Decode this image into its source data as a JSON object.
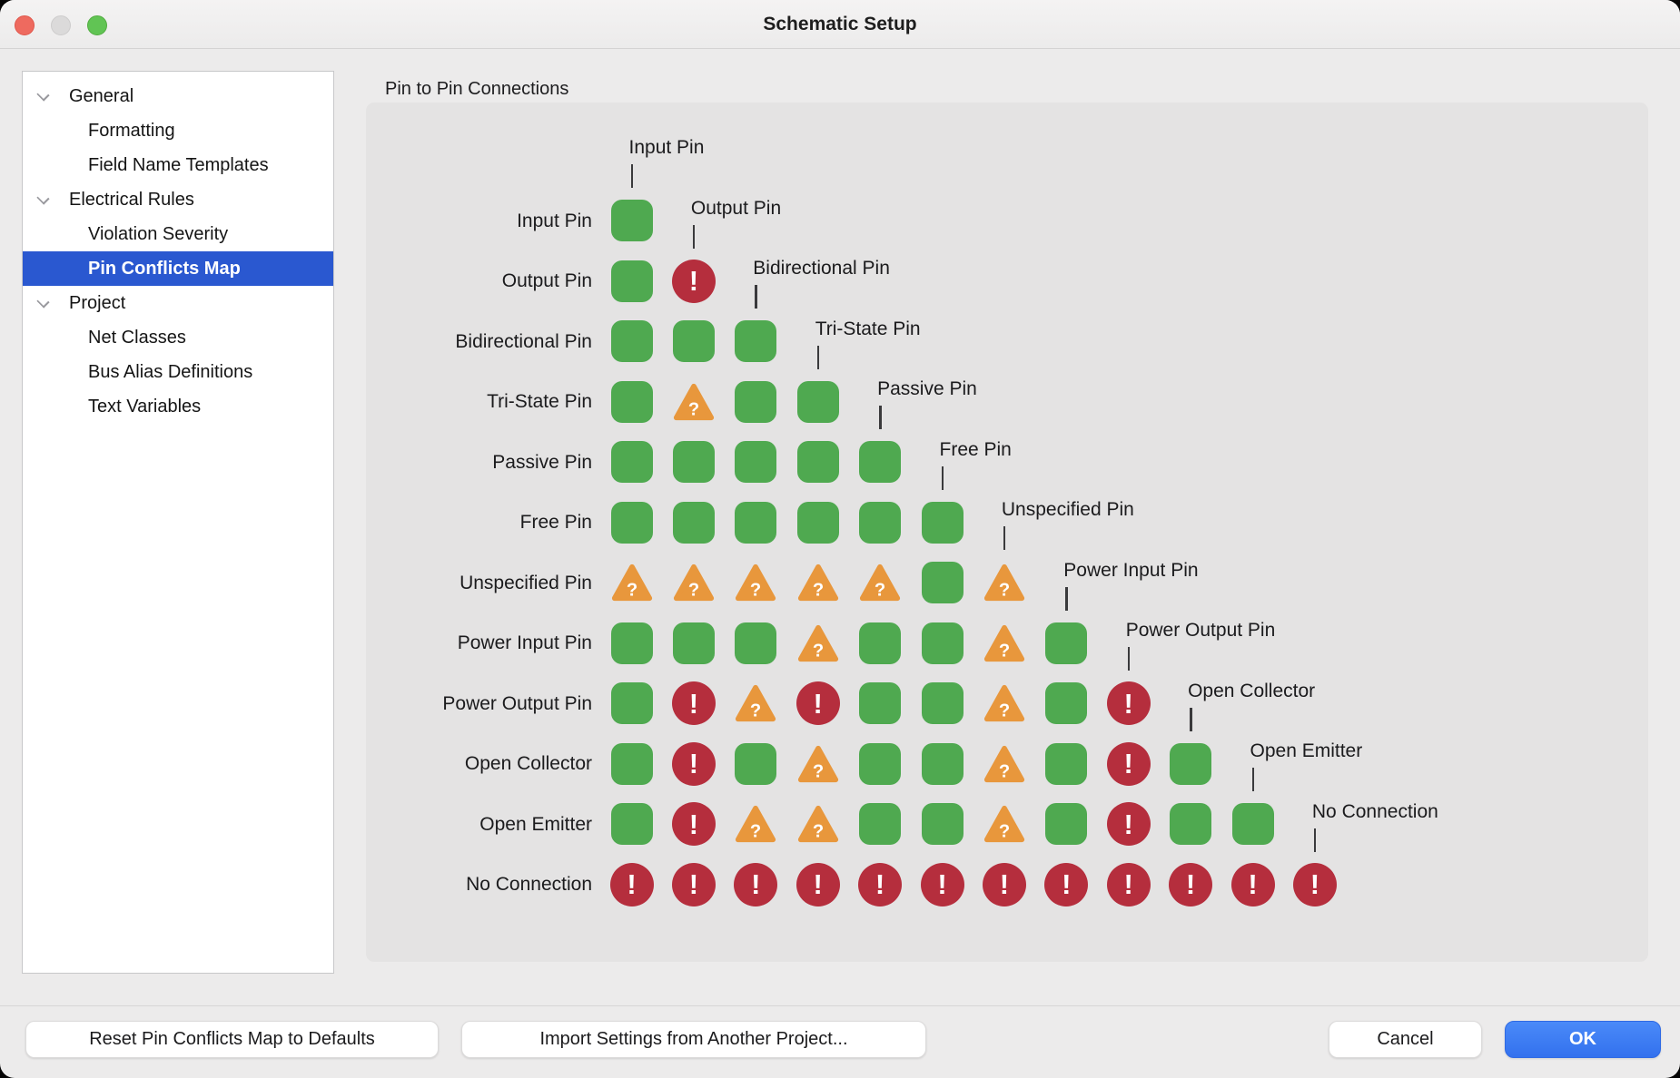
{
  "window": {
    "title": "Schematic Setup"
  },
  "sidebar": {
    "items": [
      {
        "label": "General",
        "type": "group",
        "selected": false
      },
      {
        "label": "Formatting",
        "type": "child",
        "selected": false
      },
      {
        "label": "Field Name Templates",
        "type": "child",
        "selected": false
      },
      {
        "label": "Electrical Rules",
        "type": "group",
        "selected": false
      },
      {
        "label": "Violation Severity",
        "type": "child",
        "selected": false
      },
      {
        "label": "Pin Conflicts Map",
        "type": "child",
        "selected": true
      },
      {
        "label": "Project",
        "type": "group",
        "selected": false
      },
      {
        "label": "Net Classes",
        "type": "child",
        "selected": false
      },
      {
        "label": "Bus Alias Definitions",
        "type": "child",
        "selected": false
      },
      {
        "label": "Text Variables",
        "type": "child",
        "selected": false
      }
    ]
  },
  "panel": {
    "label": "Pin to Pin Connections"
  },
  "pin_matrix": {
    "column_headers": [
      "Input Pin",
      "Output Pin",
      "Bidirectional Pin",
      "Tri-State Pin",
      "Passive Pin",
      "Free Pin",
      "Unspecified Pin",
      "Power Input Pin",
      "Power Output Pin",
      "Open Collector",
      "Open Emitter",
      "No Connection"
    ],
    "rows": [
      {
        "label": "Input Pin",
        "cells": [
          "ok"
        ]
      },
      {
        "label": "Output Pin",
        "cells": [
          "ok",
          "error"
        ]
      },
      {
        "label": "Bidirectional Pin",
        "cells": [
          "ok",
          "ok",
          "ok"
        ]
      },
      {
        "label": "Tri-State Pin",
        "cells": [
          "ok",
          "warning",
          "ok",
          "ok"
        ]
      },
      {
        "label": "Passive Pin",
        "cells": [
          "ok",
          "ok",
          "ok",
          "ok",
          "ok"
        ]
      },
      {
        "label": "Free Pin",
        "cells": [
          "ok",
          "ok",
          "ok",
          "ok",
          "ok",
          "ok"
        ]
      },
      {
        "label": "Unspecified Pin",
        "cells": [
          "warning",
          "warning",
          "warning",
          "warning",
          "warning",
          "ok",
          "warning"
        ]
      },
      {
        "label": "Power Input Pin",
        "cells": [
          "ok",
          "ok",
          "ok",
          "warning",
          "ok",
          "ok",
          "warning",
          "ok"
        ]
      },
      {
        "label": "Power Output Pin",
        "cells": [
          "ok",
          "error",
          "warning",
          "error",
          "ok",
          "ok",
          "warning",
          "ok",
          "error"
        ]
      },
      {
        "label": "Open Collector",
        "cells": [
          "ok",
          "error",
          "ok",
          "warning",
          "ok",
          "ok",
          "warning",
          "ok",
          "error",
          "ok"
        ]
      },
      {
        "label": "Open Emitter",
        "cells": [
          "ok",
          "error",
          "warning",
          "warning",
          "ok",
          "ok",
          "warning",
          "ok",
          "error",
          "ok",
          "ok"
        ]
      },
      {
        "label": "No Connection",
        "cells": [
          "error",
          "error",
          "error",
          "error",
          "error",
          "error",
          "error",
          "error",
          "error",
          "error",
          "error",
          "error"
        ]
      }
    ],
    "icons": {
      "ok": {
        "name": "ok-icon",
        "glyph": ""
      },
      "warning": {
        "name": "warning-icon",
        "glyph": "?"
      },
      "error": {
        "name": "error-icon",
        "glyph": "!"
      }
    }
  },
  "footer": {
    "reset_label": "Reset Pin Conflicts Map to Defaults",
    "import_label": "Import Settings from Another Project...",
    "cancel_label": "Cancel",
    "ok_label": "OK"
  },
  "colors": {
    "ok": "#4FA950",
    "warning": "#E8973C",
    "error": "#B52E3D",
    "selection": "#2A58D0",
    "ok_button": "#3371EE"
  }
}
